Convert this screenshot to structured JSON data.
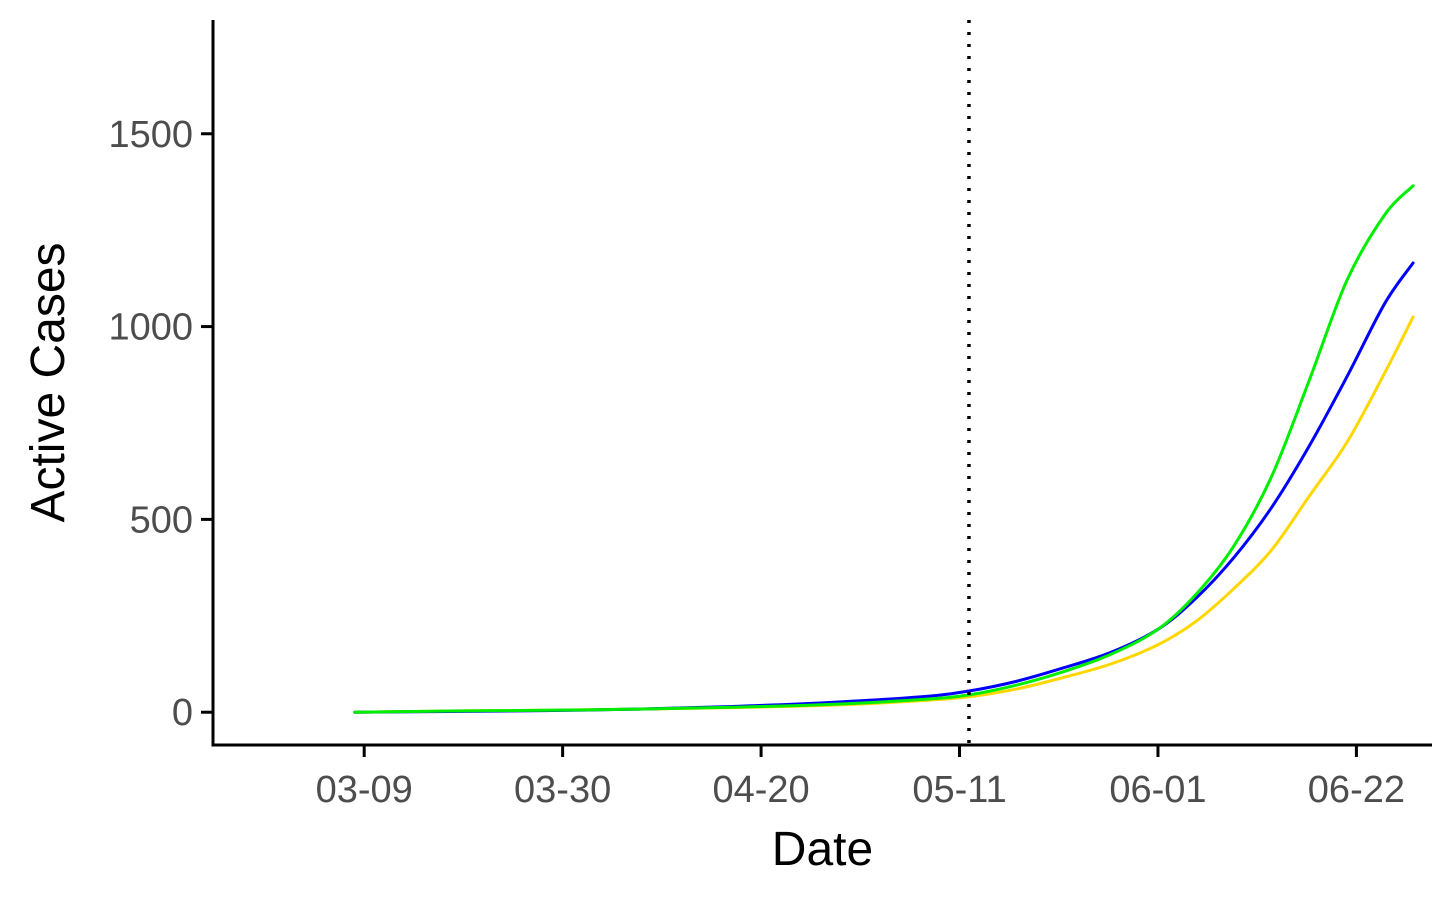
{
  "chart_data": {
    "type": "line",
    "xlabel": "Date",
    "ylabel": "Active Cases",
    "x_ticks": [
      "03-09",
      "03-30",
      "04-20",
      "05-11",
      "06-01",
      "06-22"
    ],
    "y_ticks": [
      "0",
      "500",
      "1000",
      "1500"
    ],
    "xlim": [
      "02-22",
      "06-30"
    ],
    "ylim": [
      -85,
      1795
    ],
    "grid": false,
    "legend": "none",
    "reference_line": {
      "x": "05-12",
      "style": "dotted",
      "color": "#000000"
    },
    "x": [
      "03-08",
      "03-18",
      "03-28",
      "04-07",
      "04-17",
      "04-27",
      "05-07",
      "05-12",
      "05-17",
      "05-22",
      "05-27",
      "06-01",
      "06-05",
      "06-09",
      "06-13",
      "06-17",
      "06-21",
      "06-25",
      "06-28"
    ],
    "series": [
      {
        "color": "#FFD700",
        "values": [
          0,
          3,
          5,
          8,
          12,
          18,
          30,
          40,
          60,
          90,
          125,
          175,
          235,
          320,
          420,
          560,
          700,
          880,
          1025
        ]
      },
      {
        "color": "#0000FF",
        "values": [
          0,
          2,
          4,
          8,
          15,
          25,
          40,
          55,
          80,
          115,
          155,
          215,
          295,
          400,
          530,
          690,
          870,
          1060,
          1165
        ]
      },
      {
        "color": "#00EE00",
        "values": [
          0,
          3,
          5,
          8,
          13,
          20,
          33,
          45,
          70,
          105,
          150,
          215,
          305,
          430,
          610,
          860,
          1120,
          1290,
          1365
        ]
      }
    ]
  }
}
